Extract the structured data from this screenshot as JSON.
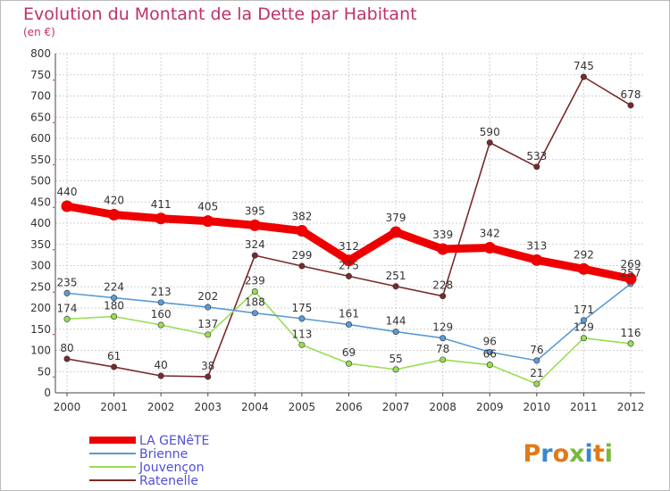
{
  "colors": {
    "background": "#ffffff",
    "title": "#c0306a",
    "grid": "#d0d0d0",
    "axis": "#444444",
    "label": "#333333",
    "legend_text": "#4e4ed8",
    "tick_marks": "#d02020"
  },
  "logo": {
    "text": "Proxiti"
  },
  "chart_data": {
    "type": "line",
    "title": "Evolution du Montant de la Dette par Habitant",
    "subtitle": "(en €)",
    "xlabel": "",
    "ylabel": "",
    "categories": [
      "2000",
      "2001",
      "2002",
      "2003",
      "2004",
      "2005",
      "2006",
      "2007",
      "2008",
      "2009",
      "2010",
      "2011",
      "2012"
    ],
    "y_ticks": [
      "0",
      "50",
      "100",
      "150",
      "200",
      "250",
      "300",
      "350",
      "400",
      "450",
      "500",
      "550",
      "600",
      "650",
      "700",
      "750",
      "800"
    ],
    "ylim": [
      0,
      800
    ],
    "grid": true,
    "legend_position": "bottom-left",
    "series": [
      {
        "name": "LA GENêTE",
        "color": "#ee0000",
        "values": [
          440,
          420,
          411,
          405,
          395,
          382,
          312,
          379,
          339,
          342,
          313,
          292,
          269
        ],
        "labels": [
          "440",
          "420",
          "411",
          "405",
          "395",
          "382",
          "312",
          "379",
          "339",
          "342",
          "313",
          "292",
          "269"
        ]
      },
      {
        "name": "Brienne",
        "color": "#5a9bd4",
        "values": [
          235,
          224,
          213,
          202,
          188,
          175,
          161,
          144,
          129,
          96,
          76,
          171,
          257
        ],
        "labels": [
          "235",
          "224",
          "213",
          "202",
          "188",
          "175",
          "161",
          "144",
          "129",
          "96",
          "76",
          "171",
          "257"
        ]
      },
      {
        "name": "Jouvençon",
        "color": "#99dd55",
        "values": [
          174,
          180,
          160,
          137,
          239,
          113,
          69,
          55,
          78,
          66,
          21,
          129,
          116
        ],
        "labels": [
          "174",
          "180",
          "160",
          "137",
          "239",
          "113",
          "69",
          "55",
          "78",
          "66",
          "21",
          "129",
          "116"
        ]
      },
      {
        "name": "Ratenelle",
        "color": "#7a2a2a",
        "values": [
          80,
          61,
          40,
          38,
          324,
          299,
          275,
          251,
          228,
          590,
          533,
          745,
          678
        ],
        "labels": [
          "80",
          "61",
          "40",
          "38",
          "324",
          "299",
          "275",
          "251",
          "228",
          "590",
          "533",
          "745",
          "678"
        ]
      }
    ]
  }
}
